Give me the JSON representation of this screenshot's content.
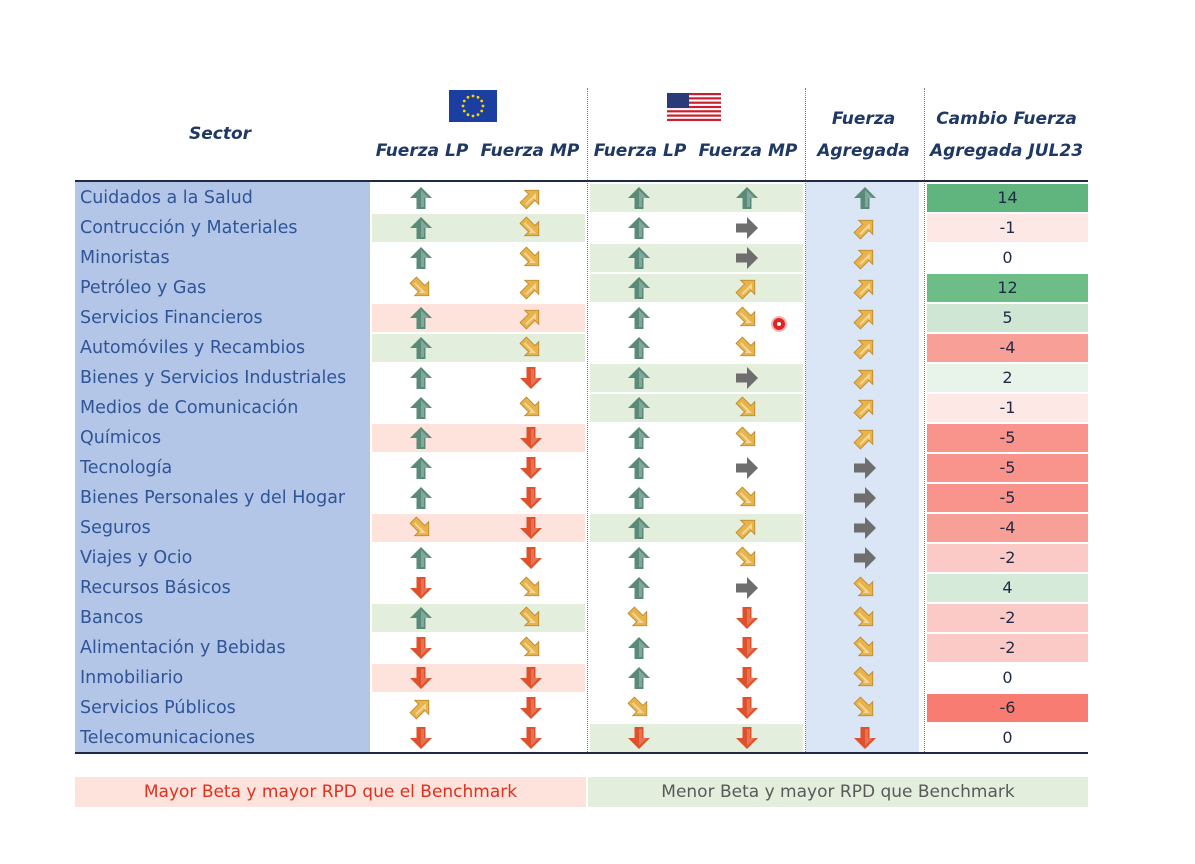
{
  "headers": {
    "sector": "Sector",
    "eu_lp": "Fuerza LP",
    "eu_mp": "Fuerza MP",
    "us_lp": "Fuerza LP",
    "us_mp": "Fuerza MP",
    "agg_line1": "Fuerza",
    "agg_line2": "Agregada",
    "change_line1": "Cambio Fuerza",
    "change_line2": "Agregada JUL23"
  },
  "flags": {
    "eu": "eu-flag",
    "us": "us-flag"
  },
  "colors": {
    "arrow_up": "#5a8a78",
    "arrow_diag_up": "#e8b44a",
    "arrow_diag_down": "#e8b44a",
    "arrow_right": "#6e6e6e",
    "arrow_down": "#e0502a",
    "band_red": "#fde3dc",
    "band_green": "#e3eedd",
    "sector_band": "#b4c6e7",
    "agg_band": "#dae5f6"
  },
  "rows": [
    {
      "sector": "Cuidados a la Salud",
      "eu_lp": "up",
      "eu_mp": "diag-up",
      "us_lp": "up",
      "us_mp": "up",
      "agg": "up",
      "change": "14",
      "eu_band": "none",
      "us_band": "green",
      "change_color": "#5fb57d"
    },
    {
      "sector": "Contrucción y Materiales",
      "eu_lp": "up",
      "eu_mp": "diag-down",
      "us_lp": "up",
      "us_mp": "right",
      "agg": "diag-up",
      "change": "-1",
      "eu_band": "green",
      "us_band": "none",
      "change_color": "#fde8e6"
    },
    {
      "sector": "Minoristas",
      "eu_lp": "up",
      "eu_mp": "diag-down",
      "us_lp": "up",
      "us_mp": "right",
      "agg": "diag-up",
      "change": "0",
      "eu_band": "none",
      "us_band": "green",
      "change_color": "#ffffff"
    },
    {
      "sector": "Petróleo y Gas",
      "eu_lp": "diag-down",
      "eu_mp": "diag-up",
      "us_lp": "up",
      "us_mp": "diag-up",
      "agg": "diag-up",
      "change": "12",
      "eu_band": "none",
      "us_band": "green",
      "change_color": "#6fbd86"
    },
    {
      "sector": "Servicios Financieros",
      "eu_lp": "up",
      "eu_mp": "diag-up",
      "us_lp": "up",
      "us_mp": "diag-down",
      "agg": "diag-up",
      "change": "5",
      "eu_band": "red",
      "us_band": "none",
      "change_color": "#cfe6d4"
    },
    {
      "sector": "Automóviles y Recambios",
      "eu_lp": "up",
      "eu_mp": "diag-down",
      "us_lp": "up",
      "us_mp": "diag-down",
      "agg": "diag-up",
      "change": "-4",
      "eu_band": "green",
      "us_band": "none",
      "change_color": "#f89f98"
    },
    {
      "sector": "Bienes y Servicios Industriales",
      "eu_lp": "up",
      "eu_mp": "down",
      "us_lp": "up",
      "us_mp": "right",
      "agg": "diag-up",
      "change": "2",
      "eu_band": "none",
      "us_band": "green",
      "change_color": "#e8f3e9"
    },
    {
      "sector": "Medios de Comunicación",
      "eu_lp": "up",
      "eu_mp": "diag-down",
      "us_lp": "up",
      "us_mp": "diag-down",
      "agg": "diag-up",
      "change": "-1",
      "eu_band": "none",
      "us_band": "green",
      "change_color": "#fde8e6"
    },
    {
      "sector": "Químicos",
      "eu_lp": "up",
      "eu_mp": "down",
      "us_lp": "up",
      "us_mp": "diag-down",
      "agg": "diag-up",
      "change": "-5",
      "eu_band": "red",
      "us_band": "none",
      "change_color": "#f8948c"
    },
    {
      "sector": "Tecnología",
      "eu_lp": "up",
      "eu_mp": "down",
      "us_lp": "up",
      "us_mp": "right",
      "agg": "right",
      "change": "-5",
      "eu_band": "none",
      "us_band": "none",
      "change_color": "#f8948c"
    },
    {
      "sector": "Bienes Personales y del Hogar",
      "eu_lp": "up",
      "eu_mp": "down",
      "us_lp": "up",
      "us_mp": "diag-down",
      "agg": "right",
      "change": "-5",
      "eu_band": "none",
      "us_band": "none",
      "change_color": "#f8948c"
    },
    {
      "sector": "Seguros",
      "eu_lp": "diag-down",
      "eu_mp": "down",
      "us_lp": "up",
      "us_mp": "diag-up",
      "agg": "right",
      "change": "-4",
      "eu_band": "red",
      "us_band": "green",
      "change_color": "#f89f98"
    },
    {
      "sector": "Viajes y Ocio",
      "eu_lp": "up",
      "eu_mp": "down",
      "us_lp": "up",
      "us_mp": "diag-down",
      "agg": "right",
      "change": "-2",
      "eu_band": "none",
      "us_band": "none",
      "change_color": "#fbcac6"
    },
    {
      "sector": "Recursos Básicos",
      "eu_lp": "down",
      "eu_mp": "diag-down",
      "us_lp": "up",
      "us_mp": "right",
      "agg": "diag-down",
      "change": "4",
      "eu_band": "none",
      "us_band": "none",
      "change_color": "#d6ead9"
    },
    {
      "sector": "Bancos",
      "eu_lp": "up",
      "eu_mp": "diag-down",
      "us_lp": "diag-down",
      "us_mp": "down",
      "agg": "diag-down",
      "change": "-2",
      "eu_band": "green",
      "us_band": "none",
      "change_color": "#fbcac6"
    },
    {
      "sector": "Alimentación y Bebidas",
      "eu_lp": "down",
      "eu_mp": "diag-down",
      "us_lp": "up",
      "us_mp": "down",
      "agg": "diag-down",
      "change": "-2",
      "eu_band": "none",
      "us_band": "none",
      "change_color": "#fbcac6"
    },
    {
      "sector": "Inmobiliario",
      "eu_lp": "down",
      "eu_mp": "down",
      "us_lp": "up",
      "us_mp": "down",
      "agg": "diag-down",
      "change": "0",
      "eu_band": "red",
      "us_band": "none",
      "change_color": "#ffffff"
    },
    {
      "sector": "Servicios Públicos",
      "eu_lp": "diag-up",
      "eu_mp": "down",
      "us_lp": "diag-down",
      "us_mp": "down",
      "agg": "diag-down",
      "change": "-6",
      "eu_band": "none",
      "us_band": "none",
      "change_color": "#f87c72"
    },
    {
      "sector": "Telecomunicaciones",
      "eu_lp": "down",
      "eu_mp": "down",
      "us_lp": "down",
      "us_mp": "down",
      "agg": "down",
      "change": "0",
      "eu_band": "none",
      "us_band": "green",
      "change_color": "#ffffff"
    }
  ],
  "legend": {
    "left": "Mayor Beta y mayor RPD que el Benchmark",
    "right": "Menor Beta y mayor RPD que Benchmark",
    "left_color": "#e0301e",
    "right_color": "#595959"
  }
}
